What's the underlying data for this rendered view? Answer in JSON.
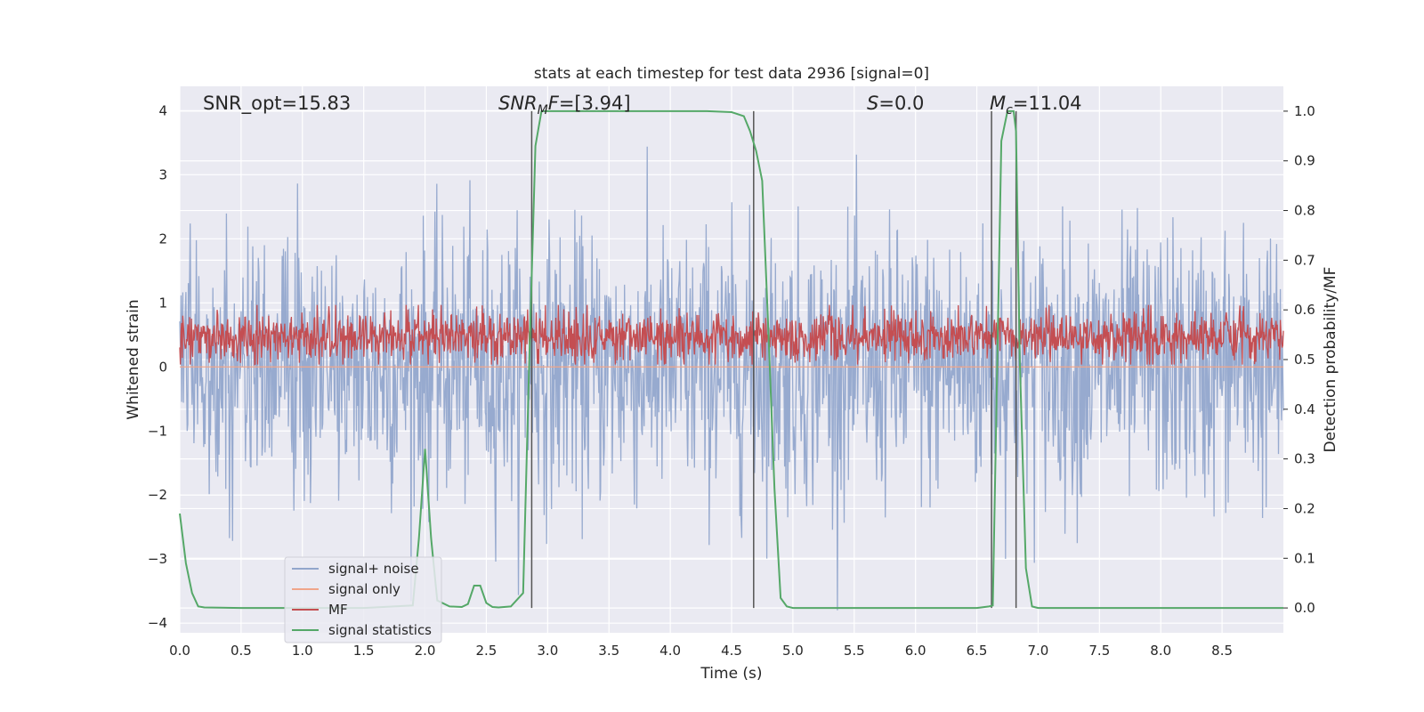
{
  "chart_data": {
    "type": "line",
    "title": "stats at each timestep for test data 2936 [signal=0]",
    "xlabel": "Time (s)",
    "ylabel": "Whitened strain",
    "ylabel_right": "Detection probability/MF",
    "xlim": [
      0.0,
      9.0
    ],
    "ylim": [
      -4.15,
      4.38
    ],
    "ylim_right": [
      -0.05,
      1.05
    ],
    "x_ticks": [
      "0.0",
      "0.5",
      "1.0",
      "1.5",
      "2.0",
      "2.5",
      "3.0",
      "3.5",
      "4.0",
      "4.5",
      "5.0",
      "5.5",
      "6.0",
      "6.5",
      "7.0",
      "7.5",
      "8.0",
      "8.5"
    ],
    "y_ticks": [
      "4",
      "3",
      "2",
      "1",
      "0",
      "−1",
      "−2",
      "−3",
      "−4"
    ],
    "y_ticks_right": [
      "1.0",
      "0.9",
      "0.8",
      "0.7",
      "0.6",
      "0.5",
      "0.4",
      "0.3",
      "0.2",
      "0.1",
      "0.0"
    ],
    "grid": true,
    "legend_position": "bottom-left",
    "annotations": [
      "SNR_opt=15.83",
      "SNR_MF=[3.94]",
      "S=0.0",
      "M_c=11.04"
    ],
    "series": [
      {
        "name": "signal+ noise",
        "color": "#92a6cc",
        "description": "noise-like whitened strain, roughly within [-3.8, 3.5]",
        "axis": "left"
      },
      {
        "name": "signal only",
        "color": "#f0a58a",
        "values_constant": 0.0,
        "axis": "left"
      },
      {
        "name": "MF",
        "color": "#c44e52",
        "description": "noise-like matched filter output, roughly within [0.49, 0.61]",
        "axis": "right"
      },
      {
        "name": "signal statistics",
        "color": "#55a868",
        "axis": "right",
        "x": [
          0.0,
          0.05,
          0.1,
          0.15,
          0.2,
          0.5,
          1.0,
          1.5,
          1.9,
          1.95,
          2.0,
          2.05,
          2.1,
          2.2,
          2.3,
          2.35,
          2.4,
          2.45,
          2.5,
          2.55,
          2.6,
          2.7,
          2.8,
          2.85,
          2.9,
          2.95,
          3.0,
          3.5,
          4.0,
          4.3,
          4.5,
          4.6,
          4.65,
          4.7,
          4.75,
          4.8,
          4.85,
          4.9,
          4.95,
          5.0,
          5.5,
          6.0,
          6.5,
          6.6,
          6.63,
          6.7,
          6.75,
          6.8,
          6.82,
          6.85,
          6.9,
          6.95,
          7.0,
          8.0,
          9.0
        ],
        "y": [
          0.19,
          0.09,
          0.03,
          0.003,
          0.001,
          0.0,
          0.0,
          0.0,
          0.005,
          0.14,
          0.32,
          0.14,
          0.015,
          0.003,
          0.002,
          0.008,
          0.045,
          0.045,
          0.01,
          0.002,
          0.001,
          0.003,
          0.03,
          0.5,
          0.93,
          1.0,
          1.0,
          1.0,
          1.0,
          1.0,
          0.998,
          0.99,
          0.96,
          0.92,
          0.86,
          0.56,
          0.24,
          0.02,
          0.003,
          0.0,
          0.0,
          0.0,
          0.0,
          0.003,
          0.005,
          0.94,
          1.0,
          1.0,
          0.96,
          0.5,
          0.08,
          0.003,
          0.0,
          0.0,
          0.0
        ]
      },
      {
        "name": "vertical markers",
        "color": "#555555",
        "x": [
          2.87,
          4.68,
          6.62,
          6.82
        ],
        "axis": "left"
      }
    ]
  }
}
